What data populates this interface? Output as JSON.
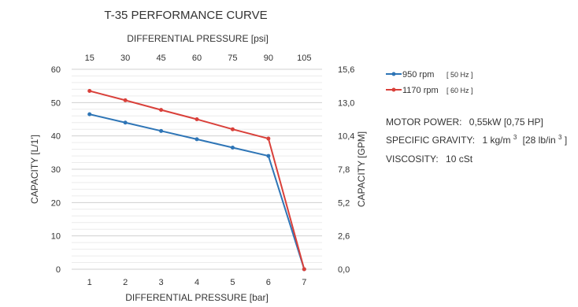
{
  "chart_data": {
    "type": "line",
    "title": "T-35 PERFORMANCE CURVE",
    "xlabel": "DIFFERENTIAL PRESSURE [bar]",
    "x2label": "DIFFERENTIAL PRESSURE [psi]",
    "ylabel": "CAPACITY [L/1']",
    "y2label": "CAPACITY [GPM]",
    "x": [
      1,
      2,
      3,
      4,
      5,
      6,
      7
    ],
    "x_ticks": [
      "1",
      "2",
      "3",
      "4",
      "5",
      "6",
      "7"
    ],
    "x2_ticks": [
      "15",
      "30",
      "45",
      "60",
      "75",
      "90",
      "105"
    ],
    "ylim": [
      0,
      60
    ],
    "y_ticks": [
      "0",
      "10",
      "20",
      "30",
      "40",
      "50",
      "60"
    ],
    "y2_ticks": [
      "0,0",
      "2,6",
      "5,2",
      "7,8",
      "10,4",
      "13,0",
      "15,6"
    ],
    "grid": true,
    "legend_position": "right",
    "series": [
      {
        "name": "950 rpm",
        "note": "[ 50 Hz ]",
        "color": "#2e75b6",
        "values": [
          46.5,
          44,
          41.5,
          39,
          36.5,
          34,
          0
        ]
      },
      {
        "name": "1170 rpm",
        "note": "[ 60 Hz ]",
        "color": "#d9403a",
        "values": [
          53.5,
          50.7,
          47.8,
          45,
          42,
          39.2,
          0
        ]
      }
    ],
    "specs": {
      "motor_label": "MOTOR POWER:",
      "motor_value": "0,55kW [0,75 HP]",
      "gravity_label": "SPECIFIC GRAVITY:",
      "gravity_value_a": "1 kg/m",
      "gravity_value_b": "[28 lb/in",
      "gravity_close": "]",
      "superscript": "3",
      "viscosity_label": "VISCOSITY:",
      "viscosity_value": "10 cSt"
    }
  }
}
